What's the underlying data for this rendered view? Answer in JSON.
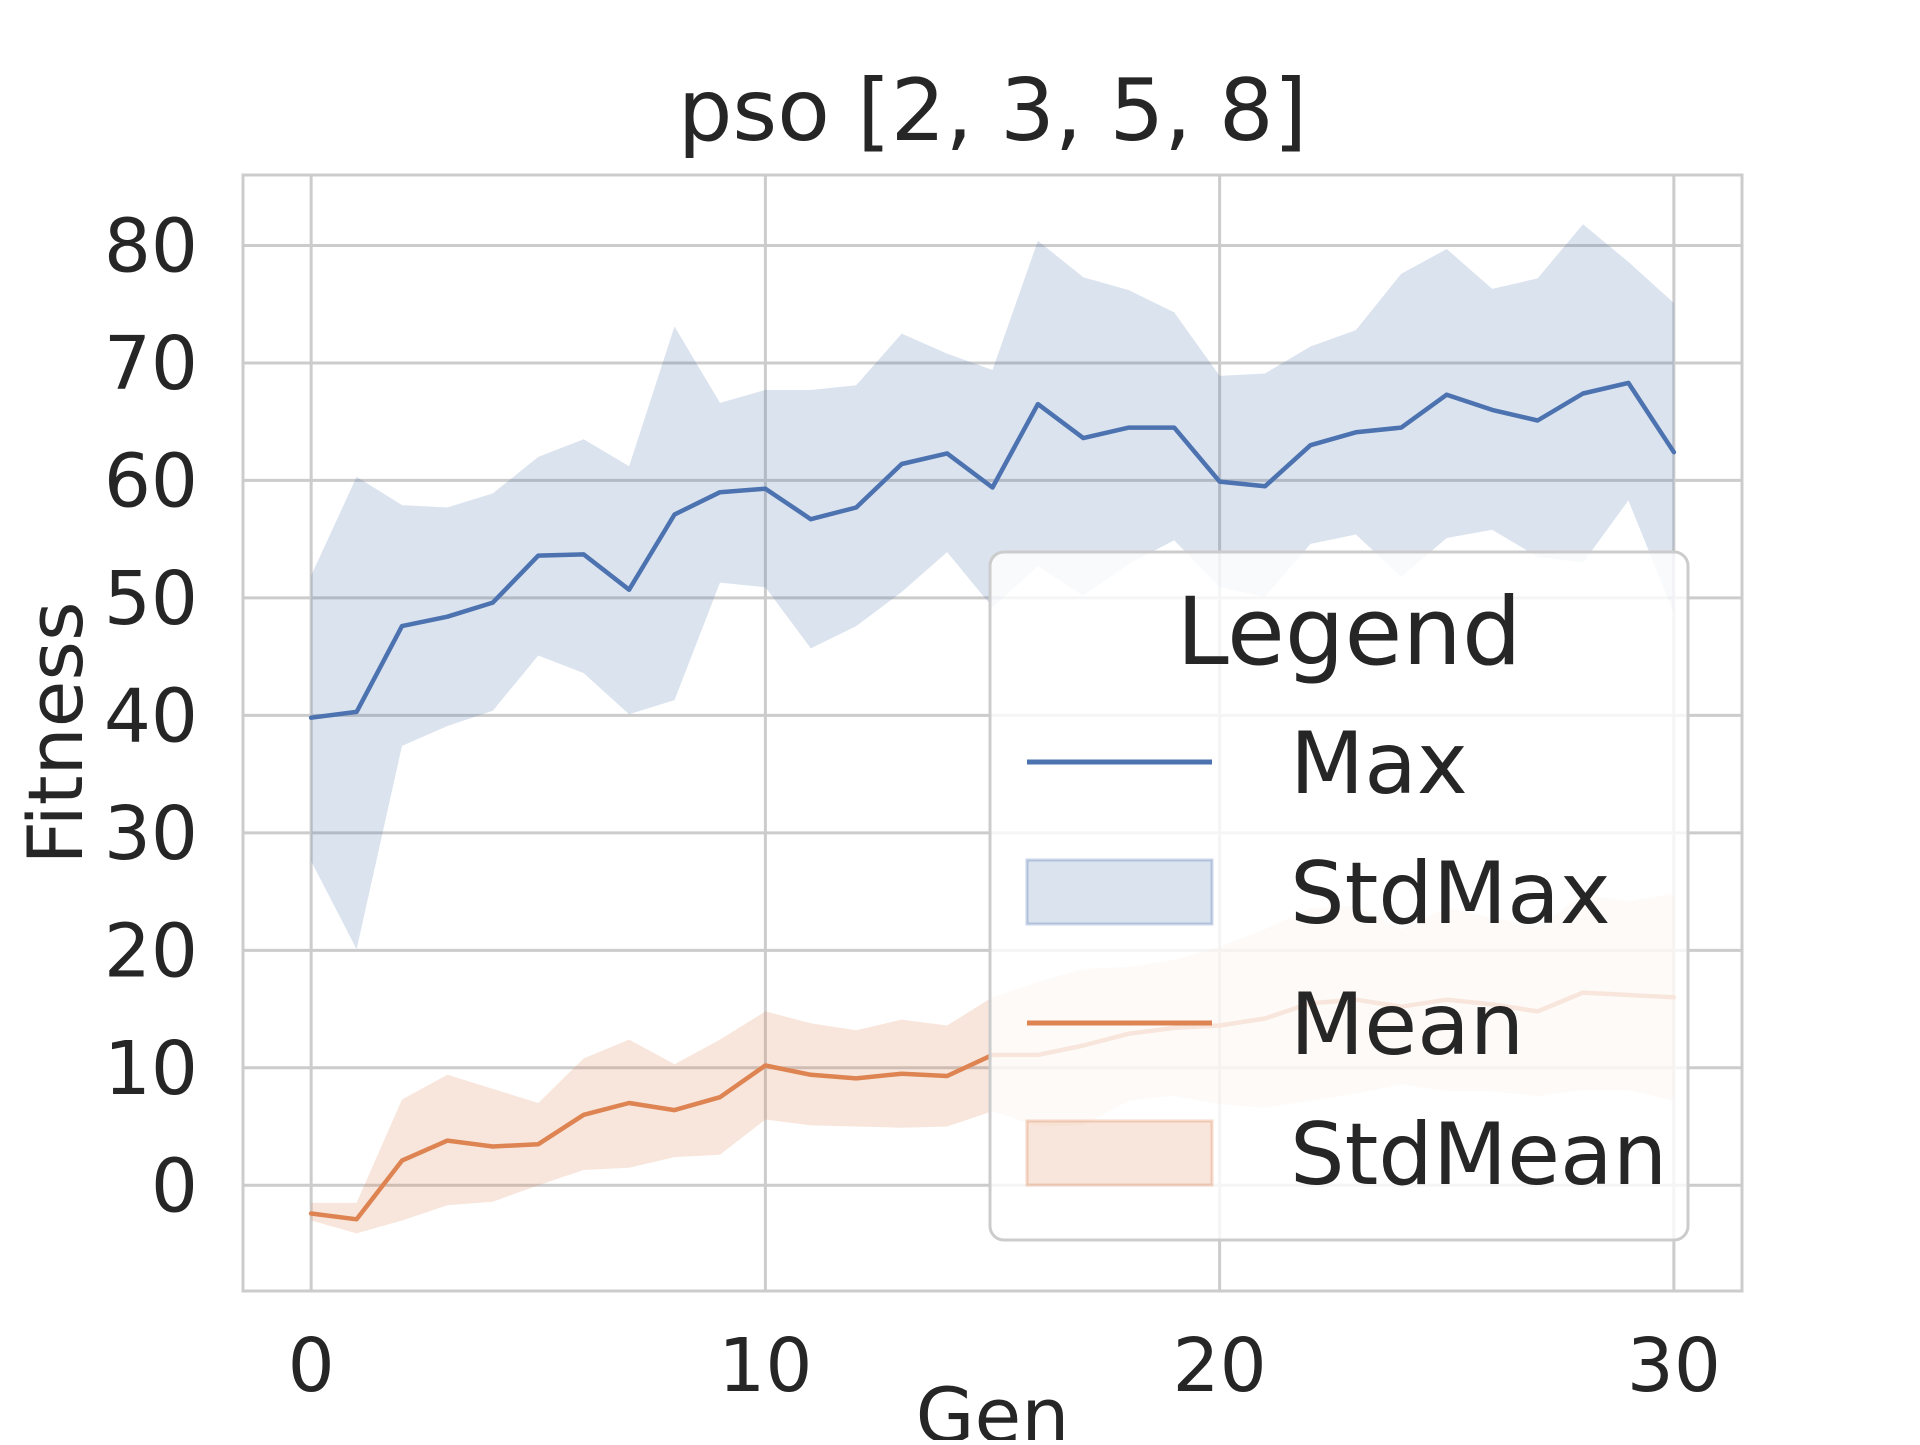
{
  "chart_data": {
    "type": "line",
    "title": "pso [2, 3, 5, 8]",
    "xlabel": "Gen",
    "ylabel": "Fitness",
    "xlim": [
      -1.5,
      31.5
    ],
    "ylim": [
      -9,
      86
    ],
    "xticks": [
      0,
      10,
      20,
      30
    ],
    "yticks": [
      0,
      10,
      20,
      30,
      40,
      50,
      60,
      70,
      80
    ],
    "grid": true,
    "legend": {
      "title": "Legend",
      "placement": "center-right",
      "entries": [
        {
          "label": "Max",
          "kind": "line",
          "series": "Max"
        },
        {
          "label": "StdMax",
          "kind": "band",
          "series": "Max"
        },
        {
          "label": "Mean",
          "kind": "line",
          "series": "Mean"
        },
        {
          "label": "StdMean",
          "kind": "band",
          "series": "Mean"
        }
      ]
    },
    "x": [
      0,
      1,
      2,
      3,
      4,
      5,
      6,
      7,
      8,
      9,
      10,
      11,
      12,
      13,
      14,
      15,
      16,
      17,
      18,
      19,
      20,
      21,
      22,
      23,
      24,
      25,
      26,
      27,
      28,
      29,
      30
    ],
    "series": [
      {
        "name": "Max",
        "color": "#4c72b0",
        "band_color": "#4c72b0",
        "values": [
          39.8,
          40.3,
          47.6,
          48.4,
          49.6,
          53.6,
          53.7,
          50.7,
          57.1,
          59.0,
          59.3,
          56.7,
          57.7,
          61.4,
          62.3,
          59.4,
          66.5,
          63.6,
          64.5,
          64.5,
          59.9,
          59.5,
          63.0,
          64.1,
          64.5,
          67.3,
          66.0,
          65.1,
          67.4,
          68.3,
          62.4
        ],
        "lower": [
          27.6,
          20.1,
          37.4,
          39.1,
          40.4,
          45.1,
          43.6,
          40.1,
          41.3,
          51.3,
          50.9,
          45.7,
          47.6,
          50.5,
          53.9,
          49.2,
          52.7,
          50.2,
          52.9,
          54.9,
          50.9,
          50.1,
          54.6,
          55.4,
          51.8,
          55.1,
          55.8,
          53.5,
          53.0,
          58.3,
          48.7
        ],
        "upper": [
          51.9,
          60.3,
          57.9,
          57.7,
          58.9,
          62.0,
          63.5,
          61.2,
          73.1,
          66.6,
          67.7,
          67.7,
          68.1,
          72.5,
          70.8,
          69.4,
          80.4,
          77.3,
          76.2,
          74.3,
          68.9,
          69.1,
          71.4,
          72.8,
          77.6,
          79.7,
          76.3,
          77.2,
          81.8,
          78.6,
          75.1
        ]
      },
      {
        "name": "Mean",
        "color": "#dd8452",
        "band_color": "#dd8452",
        "values": [
          -2.4,
          -2.9,
          2.1,
          3.8,
          3.3,
          3.5,
          6.0,
          7.0,
          6.4,
          7.5,
          10.2,
          9.4,
          9.1,
          9.5,
          9.3,
          11.1,
          11.1,
          11.9,
          12.9,
          13.4,
          13.6,
          14.2,
          15.5,
          15.8,
          15.2,
          15.8,
          15.4,
          14.8,
          16.4,
          16.2,
          16.0
        ],
        "lower": [
          -3.0,
          -4.1,
          -3.0,
          -1.7,
          -1.4,
          0.0,
          1.3,
          1.5,
          2.4,
          2.6,
          5.6,
          5.1,
          5.0,
          4.9,
          5.0,
          6.3,
          5.0,
          5.1,
          7.2,
          7.6,
          6.9,
          6.6,
          7.2,
          7.8,
          8.6,
          8.0,
          8.0,
          7.6,
          8.1,
          8.1,
          7.2
        ],
        "upper": [
          -1.5,
          -1.5,
          7.3,
          9.4,
          8.2,
          7.0,
          10.8,
          12.4,
          10.3,
          12.4,
          14.8,
          13.8,
          13.2,
          14.1,
          13.6,
          16.0,
          17.3,
          18.4,
          18.6,
          19.2,
          20.3,
          21.8,
          23.6,
          23.8,
          21.8,
          23.6,
          22.8,
          22.0,
          24.7,
          24.2,
          24.8
        ]
      }
    ]
  }
}
